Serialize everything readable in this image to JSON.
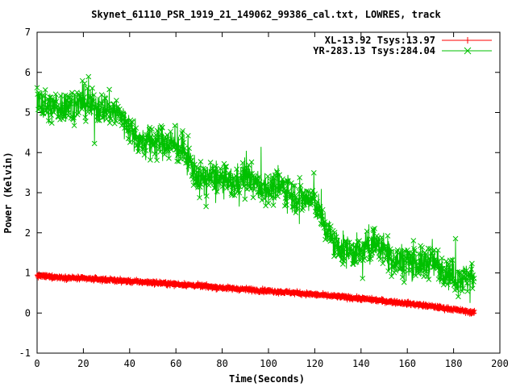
{
  "chart_data": {
    "type": "scatter",
    "title": "Skynet_61110_PSR_1919_21_149062_99386_cal.txt, LOWRES, track",
    "xlabel": "Time(Seconds)",
    "ylabel": "Power (Kelvin)",
    "xlim": [
      0,
      200
    ],
    "ylim": [
      -1,
      7
    ],
    "x_ticks": [
      "0",
      "20",
      "40",
      "60",
      "80",
      "100",
      "120",
      "140",
      "160",
      "180",
      "200"
    ],
    "y_ticks": [
      "-1",
      "0",
      "1",
      "2",
      "3",
      "4",
      "5",
      "6",
      "7"
    ],
    "legend_position": "top-right",
    "series": [
      {
        "name": "XL-13.92 Tsys:13.97",
        "color": "#ff0000",
        "marker": "plus",
        "x": [
          0,
          10,
          20,
          30,
          40,
          50,
          60,
          70,
          80,
          90,
          100,
          110,
          120,
          130,
          140,
          150,
          160,
          170,
          180,
          189
        ],
        "y": [
          0.93,
          0.89,
          0.86,
          0.83,
          0.79,
          0.76,
          0.72,
          0.68,
          0.63,
          0.59,
          0.55,
          0.51,
          0.46,
          0.41,
          0.36,
          0.3,
          0.24,
          0.17,
          0.09,
          0.01
        ]
      },
      {
        "name": "YR-283.13 Tsys:284.04",
        "color": "#00c000",
        "marker": "cross",
        "x": [
          0,
          5,
          10,
          15,
          20,
          25,
          30,
          35,
          40,
          45,
          50,
          55,
          60,
          65,
          70,
          75,
          80,
          85,
          90,
          95,
          100,
          105,
          110,
          115,
          120,
          125,
          130,
          135,
          140,
          145,
          150,
          155,
          160,
          165,
          170,
          175,
          180,
          185,
          189
        ],
        "y": [
          5.3,
          5.1,
          5.15,
          5.2,
          5.25,
          5.15,
          5.1,
          5.0,
          4.6,
          4.2,
          4.3,
          4.25,
          4.2,
          3.9,
          3.3,
          3.4,
          3.3,
          3.2,
          3.45,
          3.2,
          3.1,
          3.2,
          2.9,
          2.85,
          2.8,
          2.1,
          1.6,
          1.55,
          1.5,
          1.75,
          1.6,
          1.3,
          1.35,
          1.2,
          1.3,
          1.15,
          0.9,
          0.85,
          0.95
        ]
      }
    ]
  }
}
